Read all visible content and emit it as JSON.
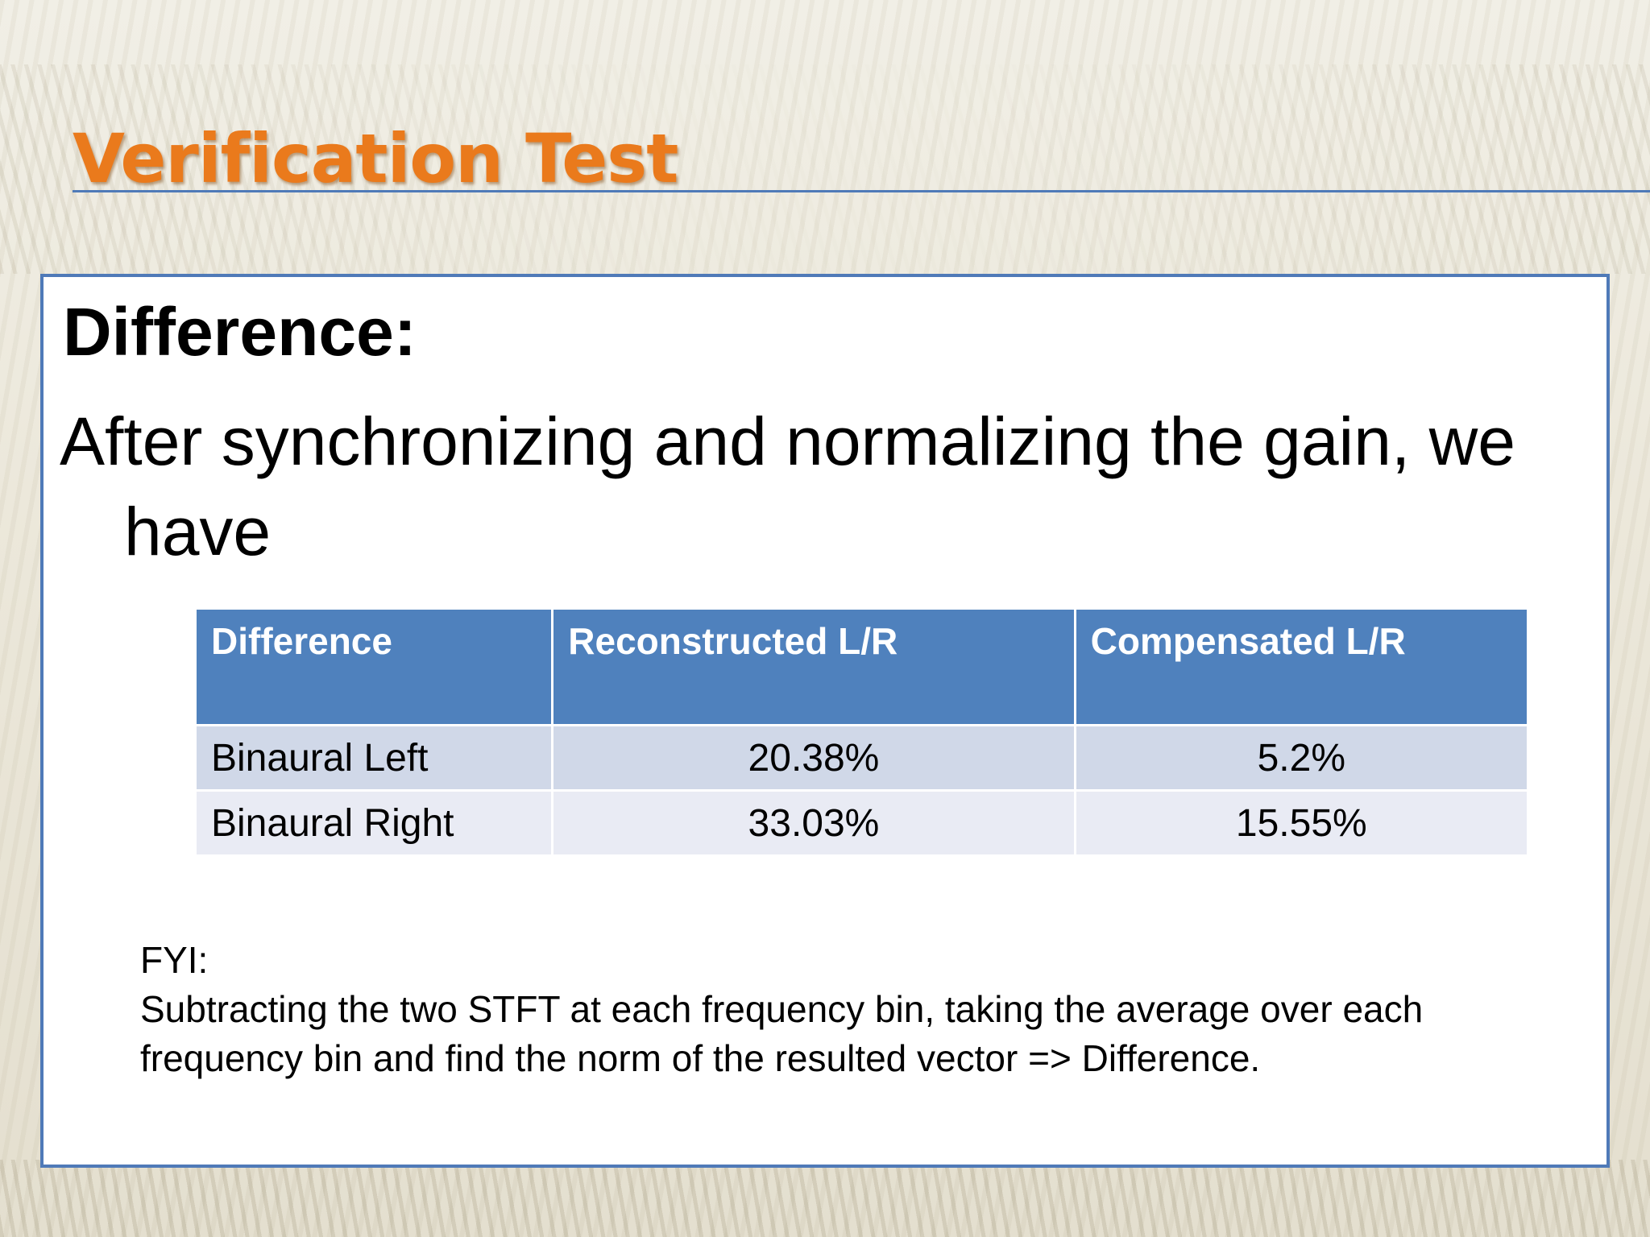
{
  "slide": {
    "title": "Verification Test",
    "heading": "Difference:",
    "body_text": "After synchronizing and normalizing the gain, we have",
    "table": {
      "headers": [
        "Difference",
        "Reconstructed  L/R",
        "Compensated  L/R"
      ],
      "rows": [
        [
          "Binaural Left",
          "20.38%",
          "5.2%"
        ],
        [
          "Binaural Right",
          "33.03%",
          "15.55%"
        ]
      ]
    },
    "fyi_label": "FYI:",
    "fyi_line1": "Subtracting the two STFT at each frequency bin, taking the average over each",
    "fyi_line2": "frequency bin and find the norm of the resulted vector => Difference."
  },
  "colors": {
    "title_orange": "#ea7a1c",
    "accent_blue": "#4f7ab8",
    "table_header": "#4f81bd",
    "row_odd": "#d0d8e8",
    "row_even": "#e9ebf4"
  }
}
